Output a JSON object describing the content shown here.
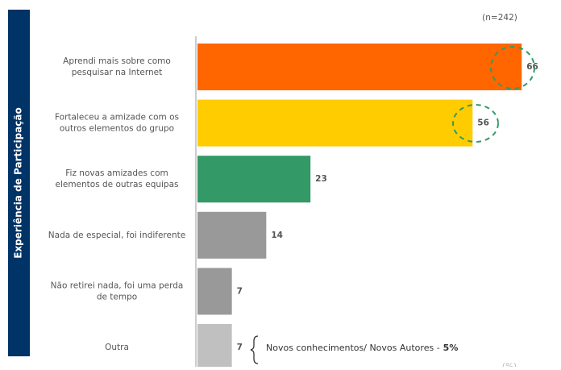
{
  "chart_data": {
    "type": "barh",
    "axis_title": "Experiência de Participação",
    "sample_note": "(n=242)",
    "unit_note": "(%)",
    "categories": [
      [
        "Aprendi mais sobre como",
        "pesquisar na Internet"
      ],
      [
        "Fortaleceu a amizade com os",
        "outros elementos do grupo"
      ],
      [
        "Fiz novas amizades com",
        "elementos de outras equipas"
      ],
      [
        "Nada de especial, foi indiferente"
      ],
      [
        "Não retirei nada, foi uma perda",
        "de tempo"
      ],
      [
        "Outra"
      ]
    ],
    "values": [
      66,
      56,
      23,
      14,
      7,
      7
    ],
    "colors": [
      "#ff6600",
      "#ffcc00",
      "#339966",
      "#999999",
      "#999999",
      "#c0c0c0"
    ],
    "xlim": [
      0,
      74
    ],
    "annotation": {
      "text": "Novos conhecimentos/ Novos Autores -",
      "emphasis": "5%"
    }
  }
}
